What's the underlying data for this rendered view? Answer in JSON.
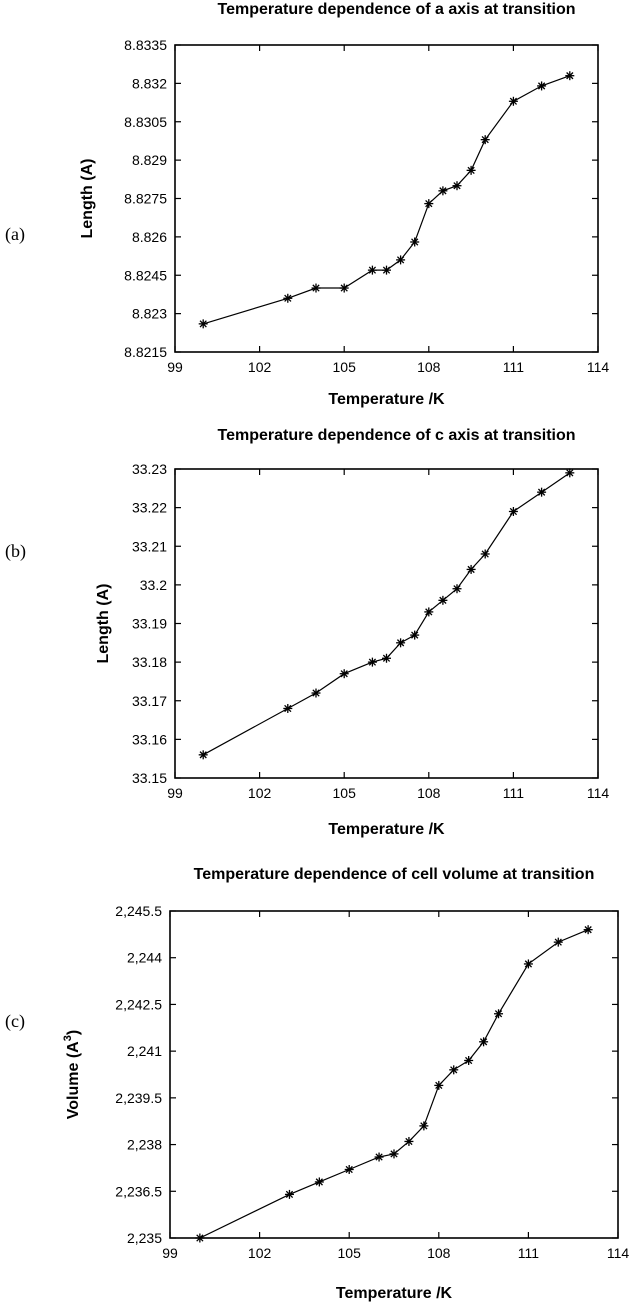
{
  "chart_data": [
    {
      "type": "line",
      "panel_label": "(a)",
      "title": "Temperature dependence of a axis at transition",
      "xlabel": "Temperature /K",
      "ylabel": "Length (A)",
      "xlim": [
        99,
        114
      ],
      "ylim": [
        8.8215,
        8.8335
      ],
      "xticks": [
        "99",
        "102",
        "105",
        "108",
        "111",
        "114"
      ],
      "yticks": [
        "8.8215",
        "8.823",
        "8.8245",
        "8.826",
        "8.8275",
        "8.829",
        "8.8305",
        "8.832",
        "8.8335"
      ],
      "grid": false,
      "marker": "asterisk",
      "series": [
        {
          "x": [
            100,
            103,
            104,
            105,
            106,
            106.5,
            107,
            107.5,
            108,
            108.5,
            109,
            109.5,
            110,
            111,
            112,
            113
          ],
          "y": [
            8.8226,
            8.8236,
            8.824,
            8.824,
            8.8247,
            8.8247,
            8.8251,
            8.8258,
            8.8273,
            8.8278,
            8.828,
            8.8286,
            8.8298,
            8.8313,
            8.8319,
            8.8323
          ]
        }
      ]
    },
    {
      "type": "line",
      "panel_label": "(b)",
      "title": "Temperature dependence of c axis at transition",
      "xlabel": "Temperature /K",
      "ylabel": "Length (A)",
      "xlim": [
        99,
        114
      ],
      "ylim": [
        33.15,
        33.23
      ],
      "xticks": [
        "99",
        "102",
        "105",
        "108",
        "111",
        "114"
      ],
      "yticks": [
        "33.15",
        "33.16",
        "33.17",
        "33.18",
        "33.19",
        "33.2",
        "33.21",
        "33.22",
        "33.23"
      ],
      "grid": false,
      "marker": "asterisk",
      "series": [
        {
          "x": [
            100,
            103,
            104,
            105,
            106,
            106.5,
            107,
            107.5,
            108,
            108.5,
            109,
            109.5,
            110,
            111,
            112,
            113
          ],
          "y": [
            33.156,
            33.168,
            33.172,
            33.177,
            33.18,
            33.181,
            33.185,
            33.187,
            33.193,
            33.196,
            33.199,
            33.204,
            33.208,
            33.219,
            33.224,
            33.229
          ]
        }
      ]
    },
    {
      "type": "line",
      "panel_label": "(c)",
      "title": "Temperature dependence of cell volume at transition",
      "xlabel": "Temperature /K",
      "ylabel": "Volume (A",
      "ylabel_sup": "3",
      "ylabel_end": ")",
      "xlim": [
        99,
        114
      ],
      "ylim": [
        2235,
        2245.5
      ],
      "xticks": [
        "99",
        "102",
        "105",
        "108",
        "111",
        "114"
      ],
      "yticks": [
        "2,235",
        "2,236.5",
        "2,238",
        "2,239.5",
        "2,241",
        "2,242.5",
        "2,244",
        "2,245.5"
      ],
      "grid": false,
      "marker": "asterisk",
      "series": [
        {
          "x": [
            100,
            103,
            104,
            105,
            106,
            106.5,
            107,
            107.5,
            108,
            108.5,
            109,
            109.5,
            110,
            111,
            112,
            113
          ],
          "y": [
            2235.0,
            2236.4,
            2236.8,
            2237.2,
            2237.6,
            2237.7,
            2238.1,
            2238.6,
            2239.9,
            2240.4,
            2240.7,
            2241.3,
            2242.2,
            2243.8,
            2244.5,
            2244.9
          ]
        }
      ]
    }
  ]
}
